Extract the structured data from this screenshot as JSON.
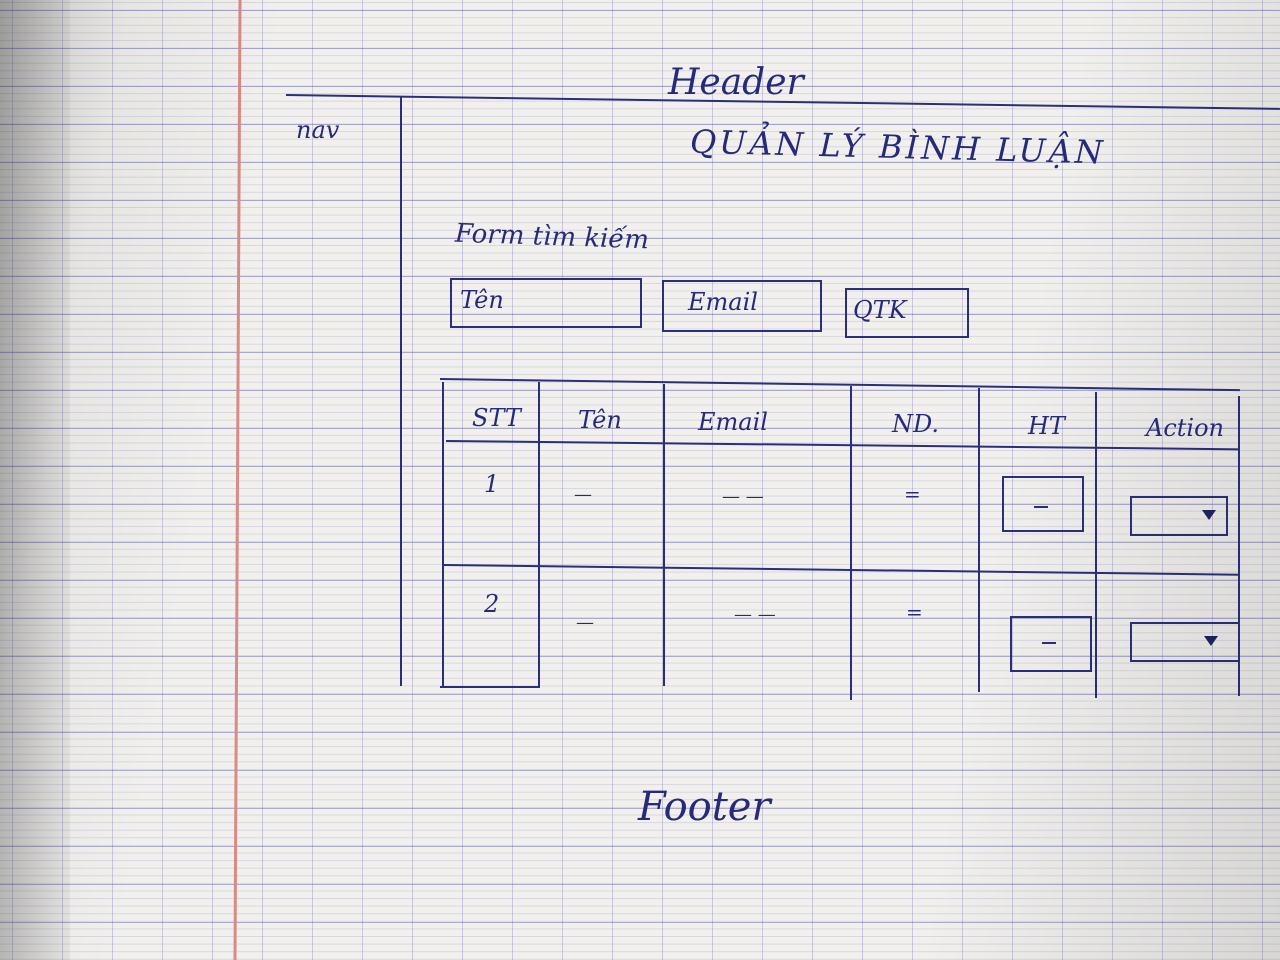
{
  "header": {
    "label": "Header",
    "page_title": "QUẢN LÝ BÌNH LUẬN"
  },
  "nav": {
    "label": "nav"
  },
  "search_form": {
    "label": "Form tìm kiếm",
    "name_field": "Tên",
    "email_field": "Email",
    "submit_button": "QTK"
  },
  "table": {
    "columns": [
      "STT",
      "Tên",
      "Email",
      "ND.",
      "HT",
      "Action"
    ],
    "rows": [
      {
        "stt": "1",
        "name": "—",
        "email": "— —",
        "content": "="
      },
      {
        "stt": "2",
        "name": "—",
        "email": "— —",
        "content": "="
      }
    ]
  },
  "footer": {
    "label": "Footer"
  },
  "colors": {
    "ink": "#2a2e7c",
    "paper": "#f1f0ed",
    "margin": "#d88a85"
  }
}
